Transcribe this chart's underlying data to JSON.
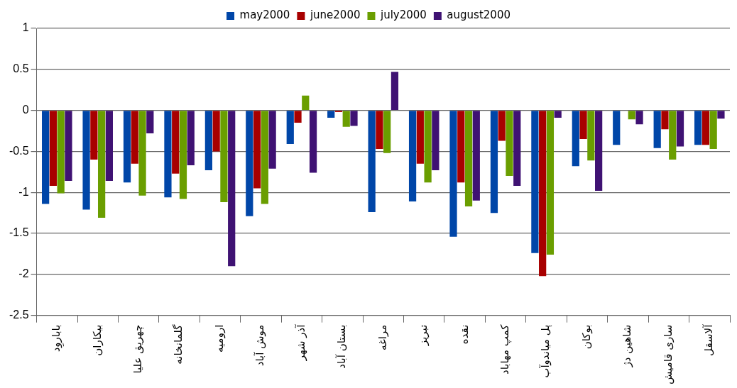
{
  "chart_data": {
    "type": "bar",
    "categories": [
      "باباروِد",
      "بیکاران",
      "چهریق علیا",
      "گلمانخانه",
      "ارومیه",
      "موش آباد",
      "آذر شهر",
      "بستان آباد",
      "مراغه",
      "تبریز",
      "نقده",
      "کمپ مهاباد",
      "پل میاندوآب",
      "بوکان",
      "شاهین دژ",
      "ساری قامیش",
      "آلاسقل"
    ],
    "series": [
      {
        "name": "may2000",
        "color": "#0046a8",
        "values": [
          -1.14,
          -1.21,
          -0.88,
          -1.06,
          -0.73,
          -1.29,
          -0.41,
          -0.09,
          -1.24,
          -1.11,
          -1.54,
          -1.25,
          -1.74,
          -0.68,
          -0.42,
          -0.46,
          -0.42
        ]
      },
      {
        "name": "june2000",
        "color": "#a80000",
        "values": [
          -0.92,
          -0.6,
          -0.65,
          -0.77,
          -0.5,
          -0.95,
          -0.15,
          -0.02,
          -0.47,
          -0.65,
          -0.88,
          -0.37,
          -2.02,
          -0.35,
          0,
          -0.23,
          -0.42
        ]
      },
      {
        "name": "july2000",
        "color": "#6a9e00",
        "values": [
          -1.01,
          -1.31,
          -1.04,
          -1.08,
          -1.12,
          -1.14,
          0.18,
          -0.2,
          -0.52,
          -0.88,
          -1.17,
          -0.8,
          -1.76,
          -0.61,
          -0.11,
          -0.6,
          -0.47
        ]
      },
      {
        "name": "august2000",
        "color": "#3f1273",
        "values": [
          -0.86,
          -0.86,
          -0.28,
          -0.67,
          -1.9,
          -0.71,
          -0.76,
          -0.19,
          0.47,
          -0.73,
          -1.1,
          -0.92,
          -0.09,
          -0.98,
          -0.17,
          -0.44,
          -0.1
        ]
      }
    ],
    "ylim": [
      -2.5,
      1
    ],
    "yticks": [
      -2.5,
      -2,
      -1.5,
      -1,
      -0.5,
      0,
      0.5,
      1
    ],
    "grid": "y",
    "legend": "top"
  }
}
